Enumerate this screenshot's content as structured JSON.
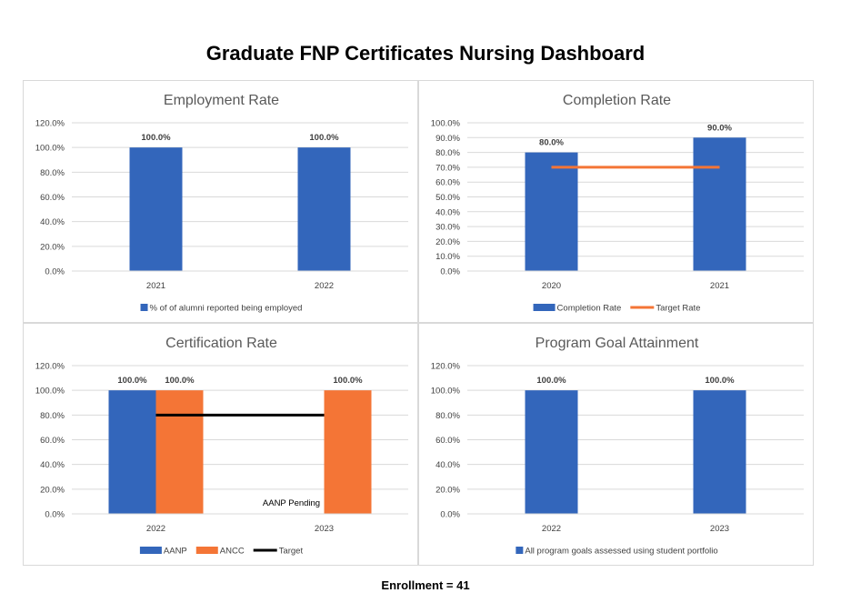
{
  "page": {
    "title": "Graduate FNP Certificates Nursing Dashboard",
    "footer": "Enrollment = 41"
  },
  "colors": {
    "blue": "#3366bb",
    "orange": "#f47536",
    "black": "#000000",
    "grid": "#d9d9d9",
    "text": "#404040",
    "title": "#595959"
  },
  "chart_data": [
    {
      "type": "bar",
      "title": "Employment Rate",
      "categories": [
        "2021",
        "2022"
      ],
      "ylim": [
        0,
        120
      ],
      "yticks": [
        0,
        20,
        40,
        60,
        80,
        100,
        120
      ],
      "ytick_labels": [
        "0.0%",
        "20.0%",
        "40.0%",
        "60.0%",
        "80.0%",
        "100.0%",
        "120.0%"
      ],
      "grid": true,
      "legend": "bottom",
      "series": [
        {
          "name": "% of of alumni reported being employed",
          "kind": "bar",
          "color": "#3366bb",
          "values": [
            100,
            100
          ],
          "labels": [
            "100.0%",
            "100.0%"
          ]
        }
      ]
    },
    {
      "type": "bar",
      "title": "Completion Rate",
      "categories": [
        "2020",
        "2021"
      ],
      "ylim": [
        0,
        100
      ],
      "yticks": [
        0,
        10,
        20,
        30,
        40,
        50,
        60,
        70,
        80,
        90,
        100
      ],
      "ytick_labels": [
        "0.0%",
        "10.0%",
        "20.0%",
        "30.0%",
        "40.0%",
        "50.0%",
        "60.0%",
        "70.0%",
        "80.0%",
        "90.0%",
        "100.0%"
      ],
      "grid": true,
      "legend": "bottom",
      "series": [
        {
          "name": "Completion Rate",
          "kind": "bar",
          "color": "#3366bb",
          "values": [
            80,
            90
          ],
          "labels": [
            "80.0%",
            "90.0%"
          ]
        },
        {
          "name": "Target Rate",
          "kind": "line",
          "color": "#f47536",
          "values": [
            70,
            70
          ]
        }
      ]
    },
    {
      "type": "bar",
      "title": "Certification Rate",
      "categories": [
        "2022",
        "2023"
      ],
      "ylim": [
        0,
        120
      ],
      "yticks": [
        0,
        20,
        40,
        60,
        80,
        100,
        120
      ],
      "ytick_labels": [
        "0.0%",
        "20.0%",
        "40.0%",
        "60.0%",
        "80.0%",
        "100.0%",
        "120.0%"
      ],
      "grid": true,
      "legend": "bottom",
      "series": [
        {
          "name": "AANP",
          "kind": "bar",
          "color": "#3366bb",
          "values": [
            100,
            null
          ],
          "labels": [
            "100.0%",
            "AANP Pending"
          ]
        },
        {
          "name": "ANCC",
          "kind": "bar",
          "color": "#f47536",
          "values": [
            100,
            100
          ],
          "labels": [
            "100.0%",
            "100.0%"
          ]
        },
        {
          "name": "Target",
          "kind": "line",
          "color": "#000000",
          "values": [
            80,
            80
          ]
        }
      ]
    },
    {
      "type": "bar",
      "title": "Program Goal Attainment",
      "categories": [
        "2022",
        "2023"
      ],
      "ylim": [
        0,
        120
      ],
      "yticks": [
        0,
        20,
        40,
        60,
        80,
        100,
        120
      ],
      "ytick_labels": [
        "0.0%",
        "20.0%",
        "40.0%",
        "60.0%",
        "80.0%",
        "100.0%",
        "120.0%"
      ],
      "grid": true,
      "legend": "bottom",
      "series": [
        {
          "name": "All program goals assessed using student portfolio",
          "kind": "bar",
          "color": "#3366bb",
          "values": [
            100,
            100
          ],
          "labels": [
            "100.0%",
            "100.0%"
          ]
        }
      ]
    }
  ]
}
